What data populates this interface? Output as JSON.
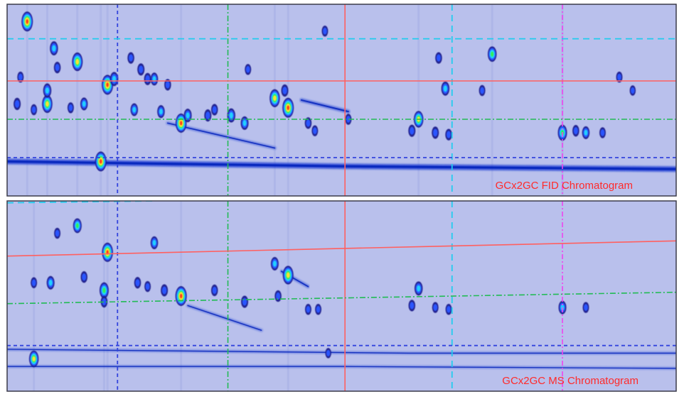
{
  "figure": {
    "panels": [
      {
        "id": "fid",
        "label": "GCx2GC FID Chromatogram"
      },
      {
        "id": "ms",
        "label": "GCx2GC MS Chromatogram"
      }
    ]
  },
  "colors": {
    "background": "#b9c0ec",
    "label": "#ff2a2a",
    "line_red": "#ff6060",
    "line_cyan": "#22ccee",
    "line_green": "#22bb55",
    "line_blue": "#3344dd",
    "line_magenta": "#ee44ee",
    "streak": "#0a2fd0",
    "heat_scale": [
      "#1a1a8c",
      "#2a55ff",
      "#22d0ff",
      "#33ee55",
      "#ffe033",
      "#ff3b1f"
    ]
  },
  "chart_data": [
    {
      "type": "heatmap",
      "title": "GCx2GC FID Chromatogram",
      "xlabel": "",
      "ylabel": "",
      "xlim": [
        0,
        100
      ],
      "ylim": [
        0,
        100
      ],
      "vertical_markers": [
        {
          "x": 16.5,
          "style": "blue-dashed"
        },
        {
          "x": 33.0,
          "style": "green-dashdot"
        },
        {
          "x": 50.5,
          "style": "red-solid"
        },
        {
          "x": 66.5,
          "style": "cyan-dashed"
        },
        {
          "x": 83.0,
          "style": "magenta-dashdot"
        }
      ],
      "horizontal_markers": [
        {
          "y0": 82,
          "y1": 82,
          "style": "cyan-dashed"
        },
        {
          "y0": 60,
          "y1": 60,
          "style": "red-solid"
        },
        {
          "y0": 40,
          "y1": 40,
          "style": "green-dashdot"
        },
        {
          "y0": 20,
          "y1": 20,
          "style": "blue-dashed"
        }
      ],
      "streaks": [
        {
          "points": [
            [
              0,
              18
            ],
            [
              50,
              15.5
            ],
            [
              100,
              14
            ]
          ],
          "intensity": 0.9
        },
        {
          "points": [
            [
              24,
              38
            ],
            [
              40,
              25
            ]
          ],
          "intensity": 0.35
        },
        {
          "points": [
            [
              44,
              50
            ],
            [
              51,
              44
            ]
          ],
          "intensity": 0.5
        }
      ],
      "peaks": [
        {
          "x": 3.0,
          "y": 91,
          "i": 1.0
        },
        {
          "x": 7.0,
          "y": 77,
          "i": 0.55
        },
        {
          "x": 7.5,
          "y": 67,
          "i": 0.35
        },
        {
          "x": 10.5,
          "y": 70,
          "i": 0.9
        },
        {
          "x": 15.0,
          "y": 58,
          "i": 1.0
        },
        {
          "x": 16.0,
          "y": 61,
          "i": 0.55
        },
        {
          "x": 14.0,
          "y": 18,
          "i": 1.0
        },
        {
          "x": 21.0,
          "y": 61,
          "i": 0.4
        },
        {
          "x": 22.0,
          "y": 61,
          "i": 0.45
        },
        {
          "x": 19.0,
          "y": 45,
          "i": 0.45
        },
        {
          "x": 23.0,
          "y": 44,
          "i": 0.45
        },
        {
          "x": 26.0,
          "y": 38,
          "i": 0.95
        },
        {
          "x": 27.0,
          "y": 42,
          "i": 0.5
        },
        {
          "x": 6.0,
          "y": 48,
          "i": 0.85
        },
        {
          "x": 6.0,
          "y": 55,
          "i": 0.55
        },
        {
          "x": 1.5,
          "y": 48,
          "i": 0.4
        },
        {
          "x": 4.0,
          "y": 45,
          "i": 0.3
        },
        {
          "x": 11.5,
          "y": 48,
          "i": 0.45
        },
        {
          "x": 9.5,
          "y": 46,
          "i": 0.3
        },
        {
          "x": 30.0,
          "y": 42,
          "i": 0.4
        },
        {
          "x": 31.0,
          "y": 45,
          "i": 0.35
        },
        {
          "x": 33.5,
          "y": 42,
          "i": 0.55
        },
        {
          "x": 35.5,
          "y": 38,
          "i": 0.5
        },
        {
          "x": 40.0,
          "y": 51,
          "i": 0.85
        },
        {
          "x": 41.5,
          "y": 55,
          "i": 0.4
        },
        {
          "x": 42.0,
          "y": 46,
          "i": 1.0
        },
        {
          "x": 45.0,
          "y": 38,
          "i": 0.35
        },
        {
          "x": 46.0,
          "y": 34,
          "i": 0.3
        },
        {
          "x": 47.5,
          "y": 86,
          "i": 0.3
        },
        {
          "x": 61.5,
          "y": 40,
          "i": 0.75
        },
        {
          "x": 60.5,
          "y": 34,
          "i": 0.4
        },
        {
          "x": 64.0,
          "y": 33,
          "i": 0.4
        },
        {
          "x": 66.0,
          "y": 32,
          "i": 0.35
        },
        {
          "x": 65.5,
          "y": 56,
          "i": 0.55
        },
        {
          "x": 64.5,
          "y": 72,
          "i": 0.35
        },
        {
          "x": 72.5,
          "y": 74,
          "i": 0.65
        },
        {
          "x": 71.0,
          "y": 55,
          "i": 0.3
        },
        {
          "x": 83.0,
          "y": 33,
          "i": 0.7
        },
        {
          "x": 85.0,
          "y": 34,
          "i": 0.35
        },
        {
          "x": 86.5,
          "y": 33,
          "i": 0.45
        },
        {
          "x": 89.0,
          "y": 33,
          "i": 0.3
        },
        {
          "x": 91.5,
          "y": 62,
          "i": 0.3
        },
        {
          "x": 93.5,
          "y": 55,
          "i": 0.25
        },
        {
          "x": 2.0,
          "y": 62,
          "i": 0.3
        },
        {
          "x": 18.5,
          "y": 72,
          "i": 0.35
        },
        {
          "x": 20.0,
          "y": 66,
          "i": 0.4
        },
        {
          "x": 36.0,
          "y": 66,
          "i": 0.3
        },
        {
          "x": 24.0,
          "y": 58,
          "i": 0.35
        },
        {
          "x": 51.0,
          "y": 40,
          "i": 0.3
        }
      ]
    },
    {
      "type": "heatmap",
      "title": "GCx2GC MS Chromatogram",
      "xlabel": "",
      "ylabel": "",
      "xlim": [
        0,
        100
      ],
      "ylim": [
        0,
        100
      ],
      "vertical_markers": [
        {
          "x": 16.5,
          "style": "blue-dashed"
        },
        {
          "x": 33.0,
          "style": "green-dashdot"
        },
        {
          "x": 50.5,
          "style": "red-solid"
        },
        {
          "x": 66.5,
          "style": "cyan-dashed"
        },
        {
          "x": 83.0,
          "style": "magenta-dashdot"
        }
      ],
      "horizontal_markers": [
        {
          "y0": 99,
          "y1": 100,
          "style": "cyan-dashed",
          "x_end": 22
        },
        {
          "y0": 71,
          "y1": 79,
          "style": "red-solid"
        },
        {
          "y0": 46,
          "y1": 52,
          "style": "green-dashdot"
        },
        {
          "y0": 24,
          "y1": 24,
          "style": "blue-dashed"
        }
      ],
      "streaks": [
        {
          "points": [
            [
              0,
              22
            ],
            [
              60,
              20
            ],
            [
              100,
              20
            ]
          ],
          "intensity": 0.25
        },
        {
          "points": [
            [
              0,
              13
            ],
            [
              50,
              13
            ],
            [
              100,
              12
            ]
          ],
          "intensity": 0.22
        },
        {
          "points": [
            [
              27,
              45
            ],
            [
              38,
              32
            ]
          ],
          "intensity": 0.3
        },
        {
          "points": [
            [
              41,
              63
            ],
            [
              45,
              55
            ]
          ],
          "intensity": 0.4
        }
      ],
      "peaks": [
        {
          "x": 10.5,
          "y": 87,
          "i": 0.6
        },
        {
          "x": 15.0,
          "y": 73,
          "i": 0.95
        },
        {
          "x": 22.0,
          "y": 78,
          "i": 0.45
        },
        {
          "x": 14.5,
          "y": 53,
          "i": 0.7
        },
        {
          "x": 14.5,
          "y": 47,
          "i": 0.35
        },
        {
          "x": 6.5,
          "y": 57,
          "i": 0.5
        },
        {
          "x": 4.0,
          "y": 57,
          "i": 0.3
        },
        {
          "x": 11.5,
          "y": 60,
          "i": 0.35
        },
        {
          "x": 19.5,
          "y": 57,
          "i": 0.35
        },
        {
          "x": 21.0,
          "y": 55,
          "i": 0.3
        },
        {
          "x": 23.5,
          "y": 53,
          "i": 0.4
        },
        {
          "x": 26.0,
          "y": 50,
          "i": 1.0
        },
        {
          "x": 31.0,
          "y": 53,
          "i": 0.35
        },
        {
          "x": 35.5,
          "y": 47,
          "i": 0.4
        },
        {
          "x": 40.0,
          "y": 67,
          "i": 0.5
        },
        {
          "x": 42.0,
          "y": 61,
          "i": 0.9
        },
        {
          "x": 40.5,
          "y": 50,
          "i": 0.35
        },
        {
          "x": 45.0,
          "y": 43,
          "i": 0.3
        },
        {
          "x": 46.5,
          "y": 43,
          "i": 0.3
        },
        {
          "x": 61.5,
          "y": 54,
          "i": 0.55
        },
        {
          "x": 60.5,
          "y": 45,
          "i": 0.35
        },
        {
          "x": 64.0,
          "y": 44,
          "i": 0.3
        },
        {
          "x": 66.0,
          "y": 43,
          "i": 0.3
        },
        {
          "x": 83.0,
          "y": 44,
          "i": 0.5
        },
        {
          "x": 86.5,
          "y": 44,
          "i": 0.3
        },
        {
          "x": 4.0,
          "y": 17,
          "i": 0.75
        },
        {
          "x": 7.5,
          "y": 83,
          "i": 0.3
        },
        {
          "x": 48.0,
          "y": 20,
          "i": 0.25
        }
      ]
    }
  ]
}
